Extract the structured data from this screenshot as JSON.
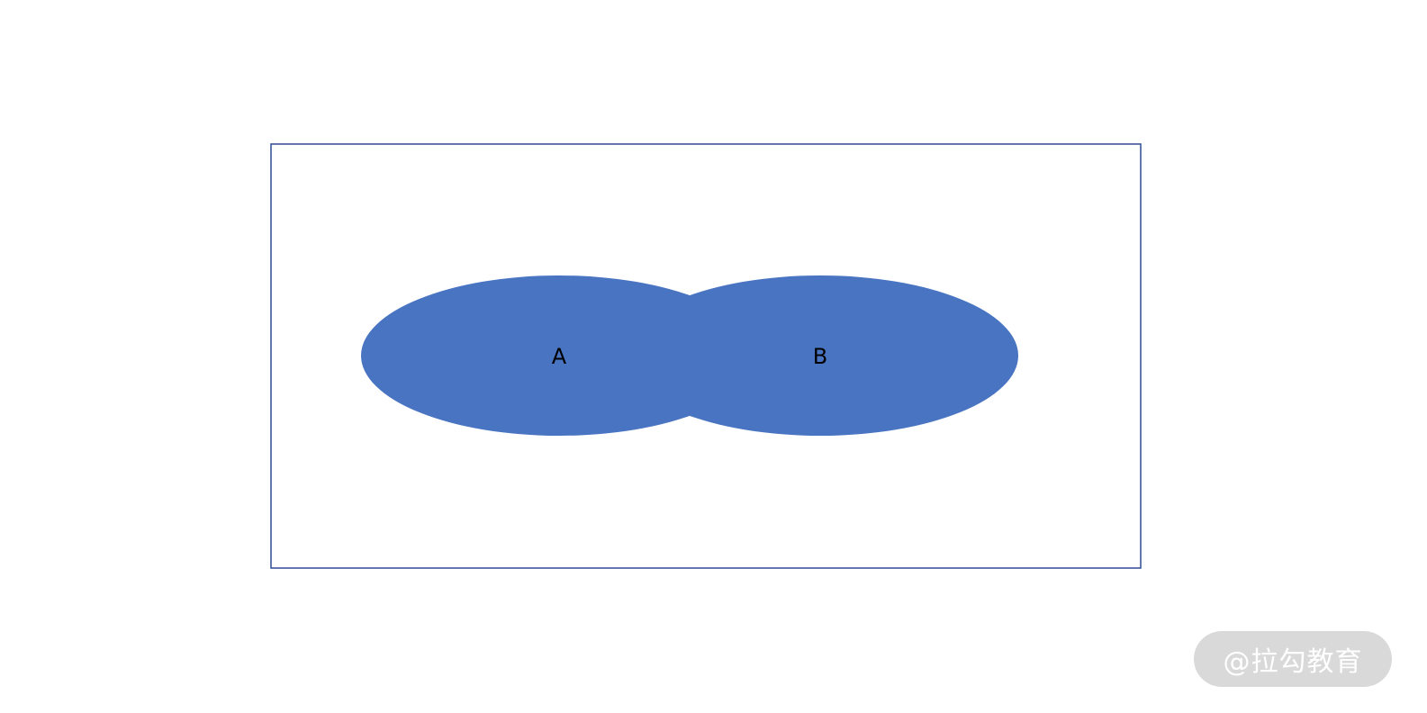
{
  "diagram": {
    "fill_color": "#4874C2",
    "border_color": "#2F4A96",
    "ellipses": [
      {
        "label": "A"
      },
      {
        "label": "B"
      }
    ]
  },
  "watermark": {
    "text": "@拉勾教育"
  }
}
